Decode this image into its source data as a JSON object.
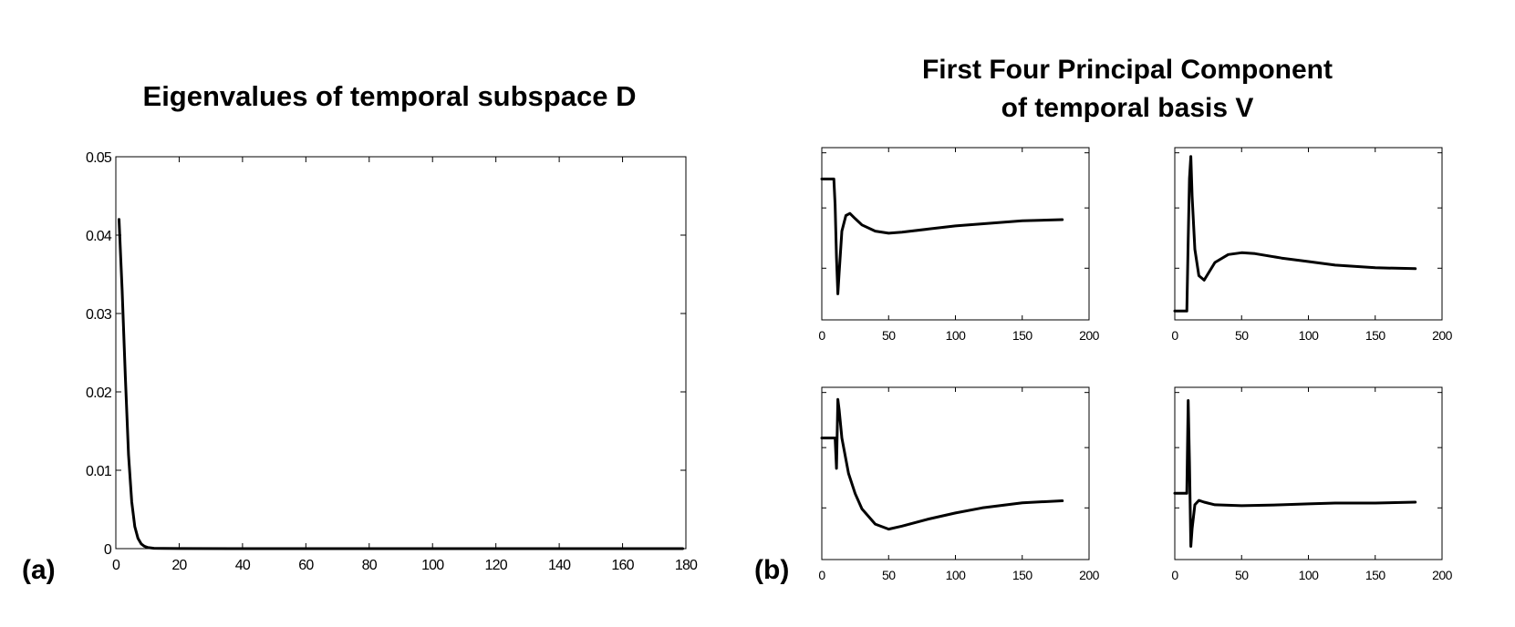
{
  "panel_a_label": "(a)",
  "panel_b_label": "(b)",
  "chart_data": [
    {
      "type": "line",
      "title": "Eigenvalues of temporal subspace D",
      "xlabel": "",
      "ylabel": "",
      "xlim": [
        0,
        180
      ],
      "ylim": [
        0,
        0.05
      ],
      "xticks": [
        "0",
        "20",
        "40",
        "60",
        "80",
        "100",
        "120",
        "140",
        "160",
        "180"
      ],
      "yticks": [
        "0",
        "0.01",
        "0.02",
        "0.03",
        "0.04",
        "0.05"
      ],
      "grid": false,
      "series": [
        {
          "x": [
            1,
            2,
            3,
            4,
            5,
            6,
            7,
            8,
            9,
            10,
            12,
            15,
            20,
            40,
            80,
            120,
            160,
            179
          ],
          "values": [
            0.042,
            0.033,
            0.022,
            0.012,
            0.006,
            0.0028,
            0.0013,
            0.0006,
            0.0003,
            0.00015,
            5e-05,
            2e-05,
            1e-05,
            0,
            0,
            0,
            0,
            0
          ]
        }
      ]
    },
    {
      "type": "line",
      "title": "First Four Principal Component\nof temporal basis V",
      "subplots": [
        {
          "xlim": [
            0,
            200
          ],
          "xticks": [
            "0",
            "50",
            "100",
            "150",
            "200"
          ],
          "series": [
            {
              "x": [
                0,
                9,
                10,
                11,
                12,
                13,
                15,
                18,
                21,
                25,
                30,
                40,
                50,
                60,
                80,
                100,
                120,
                150,
                180
              ],
              "values": [
                0.95,
                0.95,
                0.7,
                0.2,
                -0.15,
                0.05,
                0.45,
                0.6,
                0.62,
                0.57,
                0.51,
                0.45,
                0.43,
                0.44,
                0.47,
                0.5,
                0.52,
                0.55,
                0.56
              ]
            }
          ]
        },
        {
          "xlim": [
            0,
            200
          ],
          "xticks": [
            "0",
            "50",
            "100",
            "150",
            "200"
          ],
          "series": [
            {
              "x": [
                0,
                9,
                10,
                11,
                12,
                13,
                15,
                18,
                22,
                30,
                40,
                50,
                60,
                80,
                100,
                120,
                150,
                180
              ],
              "values": [
                -0.6,
                -0.6,
                0.2,
                0.9,
                1.15,
                0.7,
                0.1,
                -0.2,
                -0.25,
                -0.05,
                0.04,
                0.06,
                0.05,
                0.0,
                -0.04,
                -0.08,
                -0.11,
                -0.12
              ]
            }
          ]
        },
        {
          "xlim": [
            0,
            200
          ],
          "xticks": [
            "0",
            "50",
            "100",
            "150",
            "200"
          ],
          "series": [
            {
              "x": [
                0,
                9,
                10,
                11,
                12,
                13,
                15,
                20,
                25,
                30,
                40,
                50,
                60,
                80,
                100,
                120,
                150,
                180
              ],
              "values": [
                0.6,
                0.6,
                0.6,
                0.3,
                0.98,
                0.88,
                0.6,
                0.25,
                0.05,
                -0.1,
                -0.25,
                -0.3,
                -0.27,
                -0.2,
                -0.14,
                -0.09,
                -0.04,
                -0.02
              ]
            }
          ]
        },
        {
          "xlim": [
            0,
            200
          ],
          "xticks": [
            "0",
            "50",
            "100",
            "150",
            "200"
          ],
          "series": [
            {
              "x": [
                0,
                9,
                10,
                11,
                12,
                13,
                15,
                18,
                22,
                30,
                50,
                80,
                100,
                120,
                150,
                180
              ],
              "values": [
                0.05,
                0.05,
                1.1,
                0.4,
                -0.55,
                -0.35,
                -0.08,
                -0.03,
                -0.05,
                -0.08,
                -0.09,
                -0.08,
                -0.07,
                -0.06,
                -0.06,
                -0.05
              ]
            }
          ]
        }
      ]
    }
  ]
}
